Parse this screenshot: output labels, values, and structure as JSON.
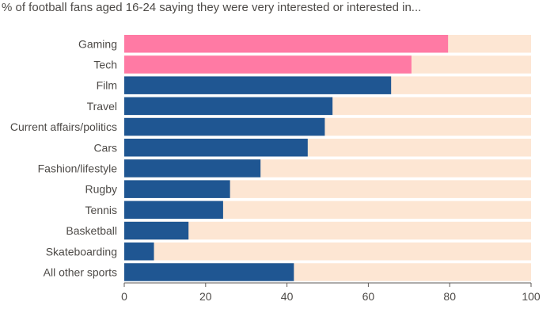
{
  "chart_data": {
    "type": "bar",
    "orientation": "horizontal",
    "title": "% of football fans aged 16-24 saying they were very interested or interested in...",
    "categories": [
      "Gaming",
      "Tech",
      "Film",
      "Travel",
      "Current affairs/politics",
      "Cars",
      "Fashion/lifestyle",
      "Rugby",
      "Tennis",
      "Basketball",
      "Skateboarding",
      "All other sports"
    ],
    "values": [
      79.6,
      70.6,
      65.6,
      51.2,
      49.3,
      45.1,
      33.5,
      26.0,
      24.3,
      15.8,
      7.3,
      41.7
    ],
    "highlighted": [
      "Gaming",
      "Tech"
    ],
    "xlim": [
      0,
      100
    ],
    "xticks": [
      0,
      20,
      40,
      60,
      80,
      100
    ],
    "grid": false,
    "colors": {
      "highlight": "#ff7aa4",
      "bar": "#1f5692",
      "track": "#fde6d3",
      "axis": "#5e5a57"
    }
  }
}
